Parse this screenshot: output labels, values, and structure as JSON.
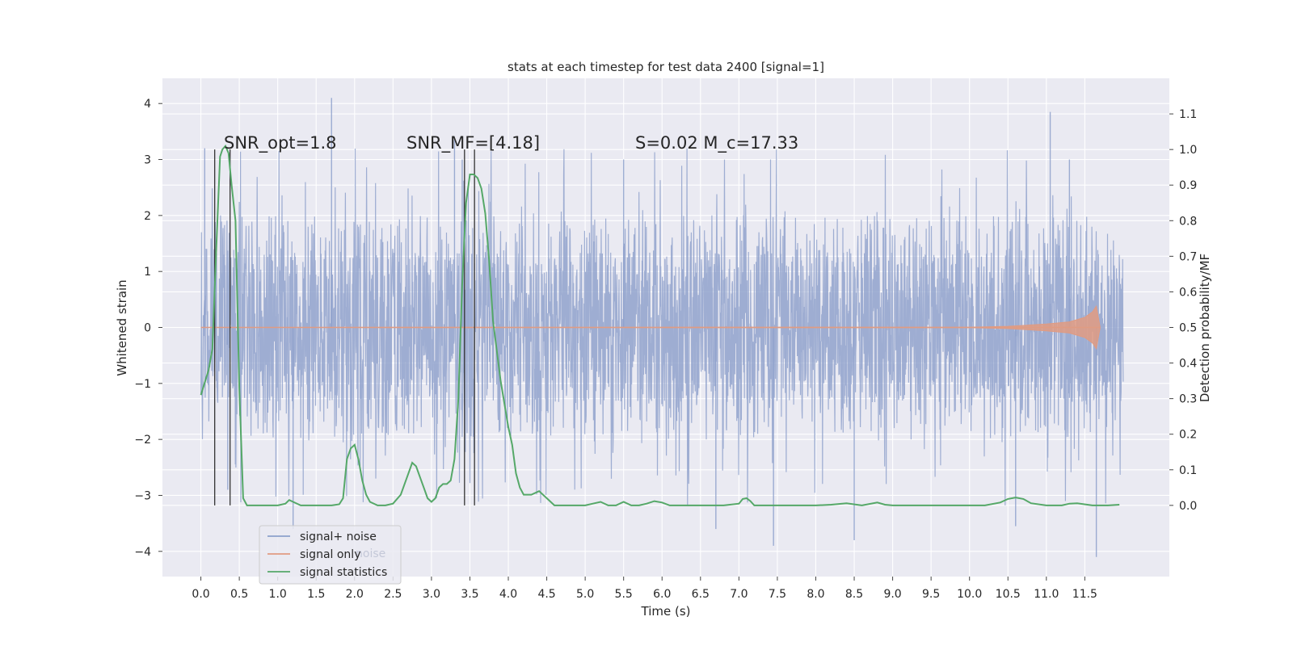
{
  "chart_data": {
    "type": "line",
    "title": "stats at each timestep for test data 2400 [signal=1]",
    "xlabel": "Time (s)",
    "ylabel_left": "Whitened strain",
    "ylabel_right": "Detection probability/MF",
    "xlim": [
      -0.5,
      12.6
    ],
    "ylim_left": [
      -4.45,
      4.45
    ],
    "ylim_right": [
      -0.2,
      1.2
    ],
    "x_ticks": [
      "0.0",
      "0.5",
      "1.0",
      "1.5",
      "2.0",
      "2.5",
      "3.0",
      "3.5",
      "4.0",
      "4.5",
      "5.0",
      "5.5",
      "6.0",
      "6.5",
      "7.0",
      "7.5",
      "8.0",
      "8.5",
      "9.0",
      "9.5",
      "10.0",
      "10.5",
      "11.0",
      "11.5"
    ],
    "y_left_ticks": [
      "4",
      "3",
      "2",
      "1",
      "0",
      "−1",
      "−2",
      "−3",
      "−4"
    ],
    "y_right_ticks": [
      "1.1",
      "1.0",
      "0.9",
      "0.8",
      "0.7",
      "0.6",
      "0.5",
      "0.4",
      "0.3",
      "0.2",
      "0.1",
      "0.0"
    ],
    "grid": true,
    "legend_position": "lower-left",
    "series": [
      {
        "name": "signal+ noise",
        "axis": "left",
        "color": "#8da0cb",
        "x_range": [
          0.0,
          12.0
        ],
        "band_typical": [
          -1.4,
          1.3
        ],
        "spike_max": 4.1,
        "spike_min": -4.1
      },
      {
        "name": "signal only",
        "axis": "left",
        "color": "#e09b82",
        "x": [
          0.0,
          10.0,
          10.5,
          11.0,
          11.3,
          11.5,
          11.6,
          11.65,
          11.7
        ],
        "envelope": [
          0.0,
          0.005,
          0.02,
          0.06,
          0.1,
          0.18,
          0.28,
          0.38,
          0.0
        ]
      },
      {
        "name": "signal statistics",
        "axis": "right",
        "color": "#55a868",
        "x": [
          0.0,
          0.1,
          0.15,
          0.2,
          0.25,
          0.28,
          0.32,
          0.36,
          0.4,
          0.45,
          0.5,
          0.55,
          0.6,
          0.7,
          0.8,
          0.9,
          1.0,
          1.1,
          1.15,
          1.2,
          1.3,
          1.4,
          1.5,
          1.6,
          1.7,
          1.8,
          1.85,
          1.9,
          1.95,
          2.0,
          2.05,
          2.1,
          2.15,
          2.2,
          2.3,
          2.4,
          2.5,
          2.6,
          2.7,
          2.75,
          2.8,
          2.85,
          2.9,
          2.95,
          3.0,
          3.05,
          3.1,
          3.15,
          3.2,
          3.25,
          3.3,
          3.35,
          3.4,
          3.45,
          3.5,
          3.55,
          3.6,
          3.65,
          3.7,
          3.75,
          3.8,
          3.9,
          4.0,
          4.05,
          4.1,
          4.15,
          4.2,
          4.3,
          4.4,
          4.5,
          4.6,
          4.8,
          5.0,
          5.1,
          5.2,
          5.3,
          5.4,
          5.5,
          5.6,
          5.7,
          5.8,
          5.9,
          6.0,
          6.1,
          6.2,
          6.4,
          6.6,
          6.8,
          7.0,
          7.05,
          7.1,
          7.15,
          7.2,
          7.3,
          7.5,
          7.8,
          8.0,
          8.2,
          8.4,
          8.6,
          8.8,
          8.9,
          9.0,
          9.5,
          10.0,
          10.2,
          10.4,
          10.5,
          10.6,
          10.7,
          10.8,
          11.0,
          11.2,
          11.3,
          11.4,
          11.6,
          11.8,
          11.95
        ],
        "y": [
          0.31,
          0.38,
          0.44,
          0.72,
          0.98,
          1.0,
          1.01,
          0.99,
          0.9,
          0.8,
          0.33,
          0.02,
          0.0,
          0.0,
          0.0,
          0.0,
          0.0,
          0.005,
          0.015,
          0.01,
          0.0,
          0.0,
          0.0,
          0.0,
          0.0,
          0.003,
          0.02,
          0.13,
          0.16,
          0.17,
          0.13,
          0.07,
          0.03,
          0.01,
          0.0,
          0.0,
          0.005,
          0.03,
          0.09,
          0.12,
          0.11,
          0.08,
          0.05,
          0.02,
          0.01,
          0.02,
          0.05,
          0.06,
          0.06,
          0.07,
          0.13,
          0.3,
          0.62,
          0.85,
          0.93,
          0.93,
          0.92,
          0.89,
          0.82,
          0.69,
          0.52,
          0.35,
          0.22,
          0.17,
          0.09,
          0.05,
          0.03,
          0.03,
          0.04,
          0.02,
          0.0,
          0.0,
          0.0,
          0.005,
          0.01,
          0.0,
          0.0,
          0.01,
          0.0,
          0.0,
          0.005,
          0.012,
          0.008,
          0.0,
          0.0,
          0.0,
          0.0,
          0.0,
          0.005,
          0.018,
          0.02,
          0.012,
          0.0,
          0.0,
          0.0,
          0.0,
          0.0,
          0.002,
          0.006,
          0.0,
          0.008,
          0.002,
          0.0,
          0.0,
          0.0,
          0.0,
          0.008,
          0.018,
          0.022,
          0.018,
          0.006,
          0.0,
          0.0,
          0.005,
          0.006,
          0.0,
          0.0,
          0.002
        ]
      }
    ],
    "vlines": [
      0.18,
      0.38,
      3.43,
      3.56
    ],
    "annotations": [
      {
        "text": "SNR_opt=1.8",
        "x": 0.2,
        "y": 3.1
      },
      {
        "text": "SNR_MF=[4.18]",
        "x": 2.6,
        "y": 3.1
      },
      {
        "text": "S=0.02   M_c=17.33",
        "x": 5.6,
        "y": 3.1
      }
    ],
    "legend": {
      "items": [
        {
          "label": "signal+ noise",
          "color": "#8da0cb"
        },
        {
          "label": "signal only",
          "color": "#e09b82"
        },
        {
          "label": "signal statistics",
          "color": "#55a868"
        }
      ],
      "ghost_text": "noise"
    }
  }
}
